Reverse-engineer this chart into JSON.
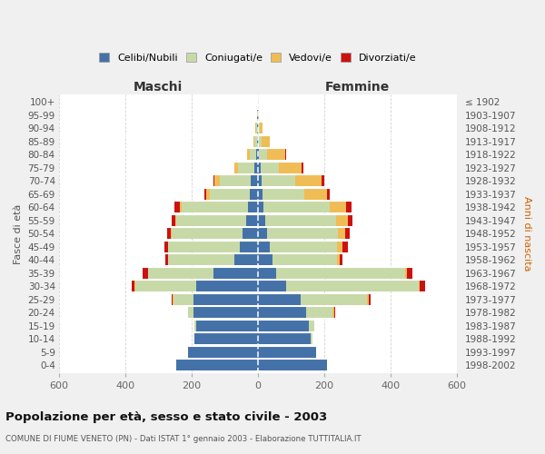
{
  "age_groups": [
    "0-4",
    "5-9",
    "10-14",
    "15-19",
    "20-24",
    "25-29",
    "30-34",
    "35-39",
    "40-44",
    "45-49",
    "50-54",
    "55-59",
    "60-64",
    "65-69",
    "70-74",
    "75-79",
    "80-84",
    "85-89",
    "90-94",
    "95-99",
    "100+"
  ],
  "birth_years": [
    "1998-2002",
    "1993-1997",
    "1988-1992",
    "1983-1987",
    "1978-1982",
    "1973-1977",
    "1968-1972",
    "1963-1967",
    "1958-1962",
    "1953-1957",
    "1948-1952",
    "1943-1947",
    "1938-1942",
    "1933-1937",
    "1928-1932",
    "1923-1927",
    "1918-1922",
    "1913-1917",
    "1908-1912",
    "1903-1907",
    "≤ 1902"
  ],
  "maschi": {
    "celibi": [
      245,
      210,
      190,
      185,
      195,
      195,
      185,
      135,
      70,
      55,
      45,
      35,
      30,
      25,
      20,
      10,
      5,
      3,
      2,
      1,
      0
    ],
    "coniugati": [
      0,
      0,
      2,
      5,
      15,
      60,
      185,
      195,
      200,
      215,
      215,
      210,
      200,
      120,
      95,
      50,
      18,
      8,
      3,
      1,
      0
    ],
    "vedovi": [
      0,
      0,
      0,
      0,
      0,
      2,
      2,
      2,
      2,
      2,
      2,
      3,
      5,
      10,
      15,
      12,
      8,
      3,
      2,
      1,
      0
    ],
    "divorziati": [
      0,
      0,
      0,
      0,
      0,
      2,
      8,
      15,
      8,
      10,
      12,
      12,
      18,
      5,
      3,
      0,
      0,
      0,
      0,
      0,
      0
    ]
  },
  "femmine": {
    "nubili": [
      210,
      175,
      160,
      155,
      145,
      130,
      85,
      55,
      45,
      35,
      28,
      22,
      18,
      15,
      12,
      8,
      4,
      2,
      2,
      1,
      0
    ],
    "coniugate": [
      0,
      2,
      5,
      15,
      80,
      200,
      400,
      390,
      195,
      205,
      215,
      215,
      200,
      125,
      100,
      55,
      25,
      10,
      3,
      1,
      0
    ],
    "vedove": [
      0,
      0,
      0,
      0,
      5,
      5,
      5,
      5,
      8,
      15,
      20,
      35,
      50,
      70,
      80,
      70,
      55,
      25,
      8,
      2,
      0
    ],
    "divorziate": [
      0,
      0,
      0,
      0,
      5,
      5,
      15,
      18,
      8,
      18,
      15,
      15,
      15,
      8,
      10,
      5,
      2,
      0,
      0,
      0,
      0
    ]
  },
  "colors": {
    "celibi": "#4472a8",
    "coniugati": "#c8d9a8",
    "vedovi": "#f0bc55",
    "divorziati": "#cc1111"
  },
  "xlim": 600,
  "title": "Popolazione per età, sesso e stato civile - 2003",
  "subtitle": "COMUNE DI FIUME VENETO (PN) - Dati ISTAT 1° gennaio 2003 - Elaborazione TUTTITALIA.IT",
  "ylabel": "Fasce di età",
  "ylabel2": "Anni di nascita",
  "xlabel_maschi": "Maschi",
  "xlabel_femmine": "Femmine",
  "legend_labels": [
    "Celibi/Nubili",
    "Coniugati/e",
    "Vedovi/e",
    "Divorziati/e"
  ],
  "bg_color": "#f0f0f0",
  "plot_bg_color": "#ffffff"
}
